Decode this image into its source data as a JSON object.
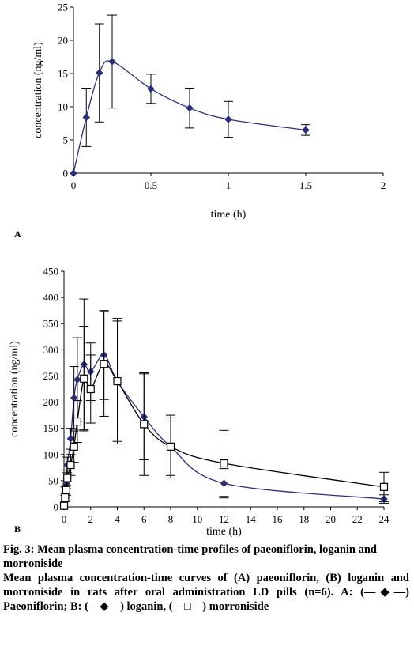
{
  "chart_data": [
    {
      "type": "line",
      "panel_label": "A",
      "xlabel": "time (h)",
      "ylabel": "concentration (ng/ml)",
      "xlim": [
        0,
        2
      ],
      "ylim": [
        0,
        25
      ],
      "xticks": [
        0,
        0.5,
        1,
        1.5,
        2
      ],
      "yticks": [
        0,
        5,
        10,
        15,
        20,
        25
      ],
      "series": [
        {
          "marker": "diamond",
          "color": "#2b2f7a",
          "x": [
            0,
            0.083,
            0.167,
            0.25,
            0.5,
            0.75,
            1,
            1.5
          ],
          "y": [
            0,
            8.4,
            15.1,
            16.8,
            12.7,
            9.8,
            8.1,
            6.5
          ],
          "err": [
            0,
            4.4,
            7.4,
            7,
            2.2,
            3,
            2.7,
            0.8
          ]
        }
      ]
    },
    {
      "type": "line",
      "panel_label": "B",
      "xlabel": "time (h)",
      "ylabel": "concentration (ng/ml)",
      "xlim": [
        0,
        24
      ],
      "ylim": [
        0,
        450
      ],
      "xticks": [
        0,
        2,
        4,
        6,
        8,
        10,
        12,
        14,
        16,
        18,
        20,
        22,
        24
      ],
      "yticks": [
        0,
        50,
        100,
        150,
        200,
        250,
        300,
        350,
        400,
        450
      ],
      "series": [
        {
          "marker": "diamond",
          "color": "#2b2f7a",
          "x": [
            0,
            0.083,
            0.167,
            0.25,
            0.5,
            0.75,
            1,
            1.5,
            2,
            3,
            4,
            6,
            8,
            12,
            24
          ],
          "y": [
            0,
            30,
            45,
            80,
            130,
            208,
            243,
            272,
            258,
            290,
            240,
            172,
            115,
            45,
            15
          ],
          "err": [
            0,
            8,
            10,
            15,
            20,
            60,
            80,
            125,
            55,
            85,
            115,
            82,
            55,
            28,
            8
          ]
        },
        {
          "marker": "square",
          "color": "#000000",
          "x": [
            0,
            0.083,
            0.167,
            0.25,
            0.5,
            0.75,
            1,
            1.5,
            2,
            3,
            4,
            6,
            8,
            12,
            24
          ],
          "y": [
            2,
            18,
            32,
            55,
            80,
            115,
            163,
            245,
            225,
            273,
            240,
            158,
            115,
            83,
            38
          ],
          "err": [
            0,
            8,
            10,
            15,
            20,
            30,
            40,
            100,
            65,
            100,
            120,
            98,
            60,
            63,
            28
          ]
        }
      ]
    }
  ],
  "caption": {
    "title": "Fig. 3: Mean plasma concentration-time profiles of paeoniflorin, loganin and morroniside",
    "body": "Mean plasma concentration-time curves of (A) paeoniflorin, (B) loganin and morroniside in rats after oral administration LD pills (n=6). A: (—◆—) Paeoniflorin; B: (—◆—) loganin, (—□—) morroniside"
  }
}
